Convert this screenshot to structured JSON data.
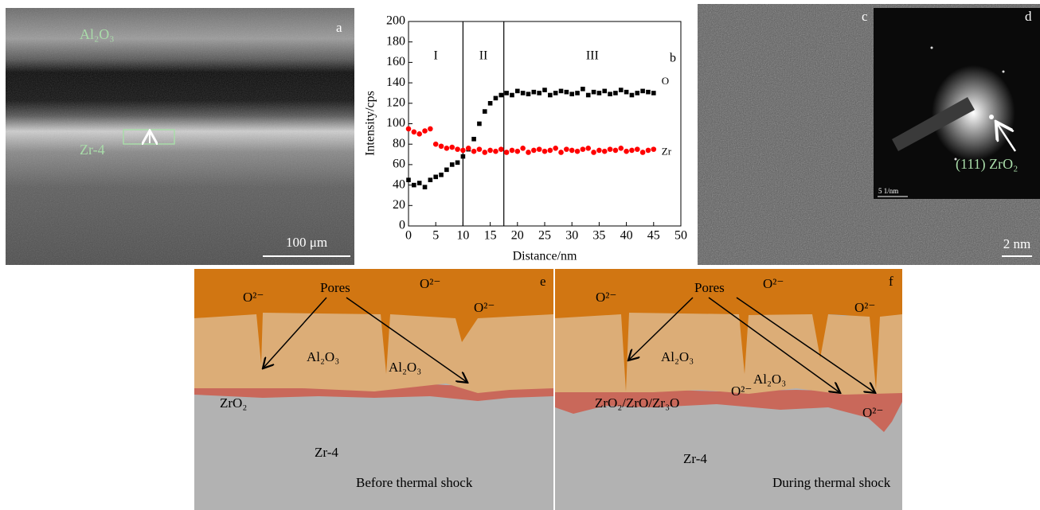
{
  "chart_data": {
    "type": "scatter",
    "x_label": "Distance/nm",
    "y_label": "Intensity/cps",
    "panel_letter": "b",
    "x": [
      0,
      1,
      2,
      3,
      4,
      5,
      6,
      7,
      8,
      9,
      10,
      11,
      12,
      13,
      14,
      15,
      16,
      17,
      18,
      19,
      20,
      21,
      22,
      23,
      24,
      25,
      26,
      27,
      28,
      29,
      30,
      31,
      32,
      33,
      34,
      35,
      36,
      37,
      38,
      39,
      40,
      41,
      42,
      43,
      44,
      45
    ],
    "series": [
      {
        "name": "O",
        "color": "#000000",
        "marker": "square",
        "values": [
          45,
          40,
          42,
          38,
          45,
          48,
          50,
          55,
          60,
          62,
          68,
          75,
          85,
          100,
          112,
          120,
          125,
          128,
          130,
          128,
          132,
          130,
          129,
          131,
          130,
          133,
          128,
          130,
          132,
          131,
          129,
          130,
          134,
          128,
          131,
          130,
          132,
          129,
          130,
          133,
          131,
          128,
          130,
          132,
          131,
          130
        ]
      },
      {
        "name": "Zr",
        "color": "#ff0000",
        "marker": "circle",
        "values": [
          95,
          92,
          90,
          93,
          95,
          80,
          78,
          76,
          77,
          75,
          74,
          76,
          73,
          75,
          72,
          74,
          73,
          75,
          72,
          74,
          73,
          76,
          72,
          74,
          75,
          73,
          74,
          76,
          72,
          75,
          74,
          73,
          75,
          76,
          72,
          74,
          73,
          75,
          74,
          76,
          73,
          74,
          75,
          72,
          74,
          75
        ]
      }
    ],
    "boundaries": [
      10,
      17.5
    ],
    "regions": [
      "I",
      "II",
      "III"
    ],
    "xlim": [
      0,
      50
    ],
    "xticks": [
      0,
      5,
      10,
      15,
      20,
      25,
      30,
      35,
      40,
      45,
      50
    ],
    "ylim": [
      0,
      200
    ],
    "yticks": [
      0,
      20,
      40,
      60,
      80,
      100,
      120,
      140,
      160,
      180,
      200
    ]
  },
  "panels": {
    "a": {
      "letter": "a",
      "labels": [
        "Al₂O₃",
        "Zr-4"
      ],
      "scale_bar": "100 μm"
    },
    "c": {
      "letter": "c",
      "scale_bar": "2 nm"
    },
    "d": {
      "letter": "d",
      "annotation": "(111) ZrO₂",
      "scale_bar": "5 1/nm"
    },
    "e": {
      "letter": "e",
      "pores": "Pores",
      "ions": [
        "O²⁻",
        "O²⁻",
        "O²⁻"
      ],
      "alumina": [
        "Al₂O₃",
        "Al₂O₃"
      ],
      "oxide": "ZrO₂",
      "substrate": "Zr-4",
      "caption": "Before thermal shock"
    },
    "f": {
      "letter": "f",
      "pores": "Pores",
      "ions": [
        "O²⁻",
        "O²⁻",
        "O²⁻",
        "O²⁻",
        "O²⁻"
      ],
      "alumina": [
        "Al₂O₃",
        "Al₂O₃"
      ],
      "oxide": "ZrO₂/ZrO/Zr₃O",
      "substrate": "Zr-4",
      "caption": "During thermal shock"
    }
  }
}
